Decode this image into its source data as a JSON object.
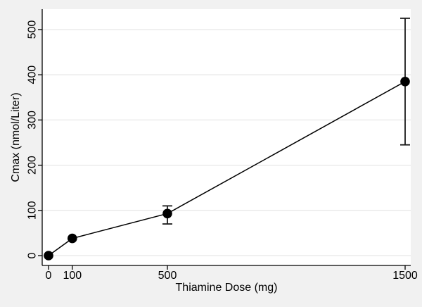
{
  "figure": {
    "xlabel": "Thiamine Dose (mg)",
    "ylabel": "Cmax (nmol/Liter)"
  },
  "chart_data": {
    "type": "line",
    "title": "",
    "xlabel": "Thiamine Dose (mg)",
    "ylabel": "Cmax (nmol/Liter)",
    "x": [
      0,
      100,
      500,
      1500
    ],
    "series": [
      {
        "name": "Cmax",
        "values": [
          0,
          38,
          93,
          385
        ],
        "ci_low": [
          null,
          null,
          70,
          245
        ],
        "ci_high": [
          null,
          null,
          110,
          525
        ]
      }
    ],
    "xticks": [
      0,
      100,
      500,
      1500
    ],
    "xtick_labels": [
      "0",
      "100",
      "500",
      "1500"
    ],
    "yticks": [
      0,
      100,
      200,
      300,
      400,
      500
    ],
    "ytick_labels": [
      "0",
      "100",
      "200",
      "300",
      "400",
      "500"
    ],
    "xlim": [
      0,
      1500
    ],
    "ylim": [
      0,
      500
    ],
    "grid": "horizontal",
    "legend": "none",
    "marker": "filled-circle",
    "ytick_label_rotation": -90,
    "colors": {
      "line": "#000000",
      "marker": "#000000",
      "error_bar": "#1a1a1a",
      "grid": "#e8e8e8",
      "axis": "#000000",
      "plot_background": "#ffffff",
      "figure_background": "#f1f1f1",
      "text": "#000000"
    }
  }
}
